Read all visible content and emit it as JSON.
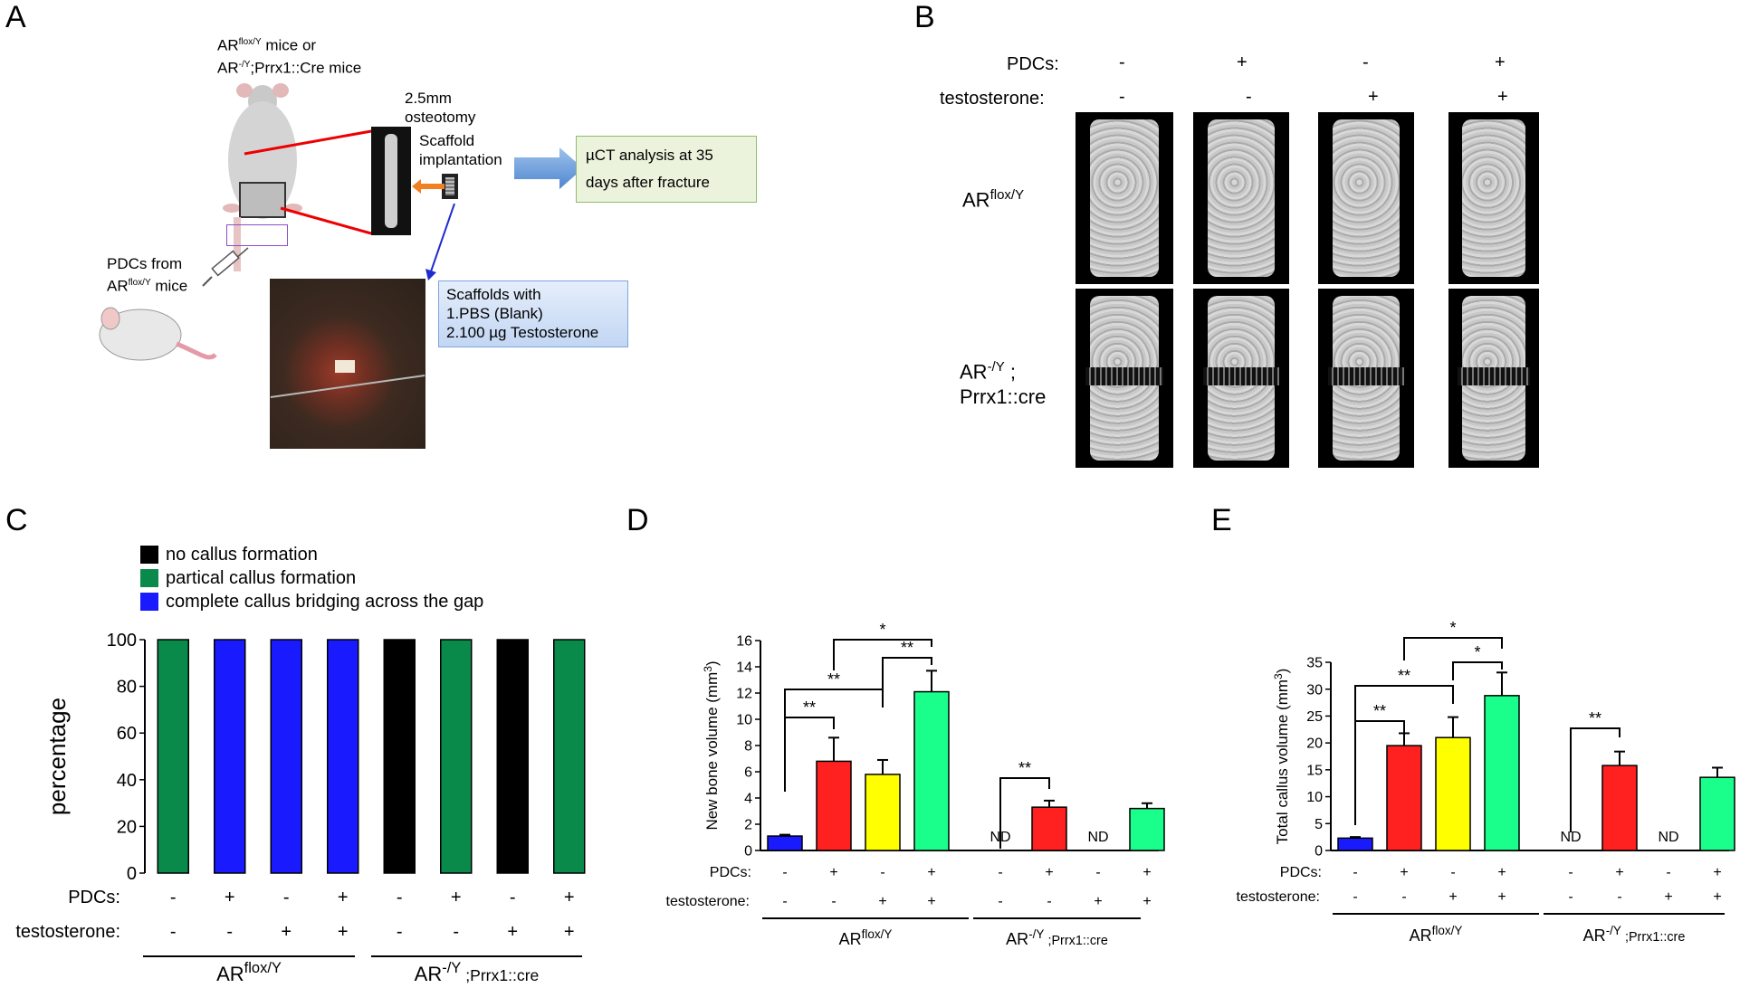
{
  "panels": {
    "a": "A",
    "b": "B",
    "c": "C",
    "d": "D",
    "e": "E"
  },
  "panelA": {
    "mice_line1": "AR",
    "mice_line1_sup": "flox/Y",
    "mice_line1_rest": " mice or",
    "mice_line2": "AR",
    "mice_line2_sup": "-/Y",
    "mice_line2_rest": ";Prrx1::Cre  mice",
    "osteotomy": "2.5mm osteotomy",
    "scaffold": "Scaffold implantation",
    "uct": "µCT analysis at 35 days after fracture",
    "pdcs_line1": "PDCs from",
    "pdcs_line2": "AR",
    "pdcs_line2_sup": "flox/Y",
    "pdcs_line2_rest": " mice",
    "scaffolds_title": "Scaffolds with",
    "scaffolds_1": "1.PBS (Blank)",
    "scaffolds_2": "2.100 µg Testosterone"
  },
  "panelB": {
    "pdcs_label": "PDCs:",
    "testo_label": "testosterone:",
    "pdcs": [
      "-",
      "+",
      "-",
      "+"
    ],
    "testo": [
      "-",
      "-",
      "+",
      "+"
    ],
    "row1": "AR",
    "row1_sup": "flox/Y",
    "row2": "AR",
    "row2_sup": "-/Y",
    "row2_rest": " ;",
    "row2_line2": "Prrx1::cre"
  },
  "colors": {
    "blue": "#1a1aff",
    "red": "#ff2020",
    "yellow": "#ffff00",
    "green": "#1aff8c",
    "darkgreen": "#0a8a4a",
    "black": "#000000",
    "boxA": "#8fbc6b",
    "fillA": "#ebf3dd",
    "boxS": "#7ea6e0"
  },
  "legendC": [
    {
      "label": "no callus formation",
      "color": "#000000"
    },
    {
      "label": "partical callus formation",
      "color": "#0a8a4a"
    },
    {
      "label": "complete callus bridging across the gap",
      "color": "#1a1aff"
    }
  ],
  "chart_data": [
    {
      "id": "C",
      "type": "bar",
      "ylabel": "percentage",
      "ylim": [
        0,
        100
      ],
      "yticks": [
        0,
        20,
        40,
        60,
        80,
        100
      ],
      "values": [
        100,
        100,
        100,
        100,
        100,
        100,
        100,
        100
      ],
      "colors": [
        "#0a8a4a",
        "#1a1aff",
        "#1a1aff",
        "#1a1aff",
        "#000000",
        "#0a8a4a",
        "#000000",
        "#0a8a4a"
      ],
      "pdcs": [
        "-",
        "+",
        "-",
        "+",
        "-",
        "+",
        "-",
        "+"
      ],
      "testosterone": [
        "-",
        "-",
        "+",
        "+",
        "-",
        "-",
        "+",
        "+"
      ],
      "row_labels": [
        "PDCs:",
        "testosterone:"
      ],
      "groups": [
        {
          "base": "AR",
          "sup": "flox/Y",
          "rest": ""
        },
        {
          "base": "AR",
          "sup": "-/Y",
          "rest": " ;Prrx1::cre"
        }
      ]
    },
    {
      "id": "D",
      "type": "bar",
      "ylabel": "New bone volume (mm³)",
      "ylim": [
        0,
        16
      ],
      "yticks": [
        0,
        2,
        4,
        6,
        8,
        10,
        12,
        14,
        16
      ],
      "values": [
        1.1,
        6.8,
        5.8,
        12.1,
        null,
        3.3,
        null,
        3.2
      ],
      "errors": [
        0.1,
        1.8,
        1.1,
        1.6,
        null,
        0.5,
        null,
        0.4
      ],
      "colors": [
        "#1a1aff",
        "#ff2020",
        "#ffff00",
        "#1aff8c",
        "#ff2020",
        "#ff2020",
        "#1aff8c",
        "#1aff8c"
      ],
      "nd_label": "ND",
      "pdcs": [
        "-",
        "+",
        "-",
        "+",
        "-",
        "+",
        "-",
        "+"
      ],
      "testosterone": [
        "-",
        "-",
        "+",
        "+",
        "-",
        "-",
        "+",
        "+"
      ],
      "row_labels": [
        "PDCs:",
        "testosterone:"
      ],
      "groups": [
        {
          "base": "AR",
          "sup": "flox/Y",
          "rest": ""
        },
        {
          "base": "AR",
          "sup": "-/Y",
          "rest": " ;Prrx1::cre"
        }
      ],
      "significance": [
        {
          "from": 0,
          "to": 1,
          "label": "**"
        },
        {
          "from": 0,
          "to": 2,
          "label": "**"
        },
        {
          "from": 2,
          "to": 3,
          "label": "**"
        },
        {
          "from": 1,
          "to": 3,
          "label": "*"
        },
        {
          "from": 4,
          "to": 5,
          "label": "**"
        }
      ]
    },
    {
      "id": "E",
      "type": "bar",
      "ylabel": "Total callus volume (mm³)",
      "ylim": [
        0,
        35
      ],
      "yticks": [
        0,
        5,
        10,
        15,
        20,
        25,
        30,
        35
      ],
      "values": [
        2.3,
        19.5,
        21,
        28.8,
        null,
        15.8,
        null,
        13.6
      ],
      "errors": [
        0.2,
        2.3,
        3.8,
        4.3,
        null,
        2.6,
        null,
        1.8
      ],
      "colors": [
        "#1a1aff",
        "#ff2020",
        "#ffff00",
        "#1aff8c",
        "#ff2020",
        "#ff2020",
        "#1aff8c",
        "#1aff8c"
      ],
      "nd_label": "ND",
      "pdcs": [
        "-",
        "+",
        "-",
        "+",
        "-",
        "+",
        "-",
        "+"
      ],
      "testosterone": [
        "-",
        "-",
        "+",
        "+",
        "-",
        "-",
        "+",
        "+"
      ],
      "row_labels": [
        "PDCs:",
        "testosterone:"
      ],
      "groups": [
        {
          "base": "AR",
          "sup": "flox/Y",
          "rest": ""
        },
        {
          "base": "AR",
          "sup": "-/Y",
          "rest": " ;Prrx1::cre"
        }
      ],
      "significance": [
        {
          "from": 0,
          "to": 1,
          "label": "**"
        },
        {
          "from": 0,
          "to": 2,
          "label": "**"
        },
        {
          "from": 2,
          "to": 3,
          "label": "*"
        },
        {
          "from": 1,
          "to": 3,
          "label": "*"
        },
        {
          "from": 4,
          "to": 5,
          "label": "**"
        }
      ]
    }
  ]
}
